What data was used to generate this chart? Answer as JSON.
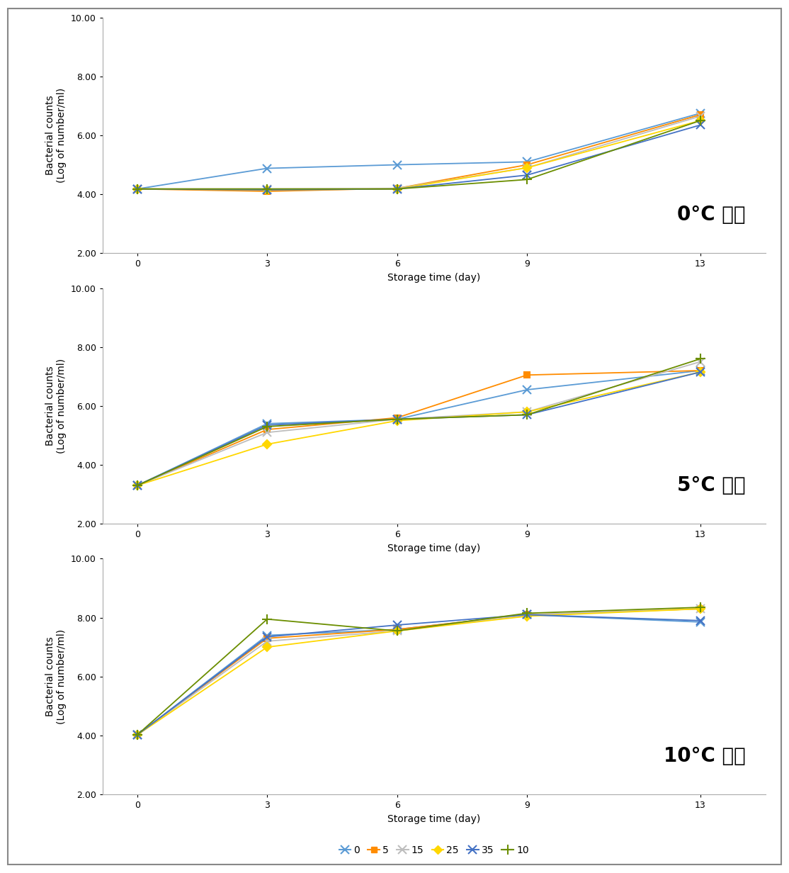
{
  "x": [
    0,
    3,
    6,
    9,
    13
  ],
  "series_labels": [
    "0",
    "5",
    "15",
    "25",
    "35",
    "10"
  ],
  "plot0_title": "0°C 저장",
  "plot1_title": "5°C 저장",
  "plot2_title": "10°C 저장",
  "ylabel_line1": "Bacterial counts",
  "ylabel_line2": "(Log of number/ml)",
  "xlabel": "Storage time (day)",
  "ylim": [
    2.0,
    10.0
  ],
  "yticks": [
    2.0,
    4.0,
    6.0,
    8.0,
    10.0
  ],
  "xticks": [
    0,
    3,
    6,
    9,
    13
  ],
  "plot0_data": [
    [
      4.18,
      4.88,
      5.0,
      5.1,
      6.75
    ],
    [
      4.18,
      4.1,
      4.2,
      5.0,
      6.7
    ],
    [
      4.18,
      4.18,
      4.2,
      4.9,
      6.65
    ],
    [
      4.18,
      4.15,
      4.18,
      4.9,
      6.5
    ],
    [
      4.18,
      4.15,
      4.18,
      4.65,
      6.35
    ],
    [
      4.18,
      4.18,
      4.18,
      4.5,
      6.5
    ]
  ],
  "plot1_data": [
    [
      3.3,
      5.4,
      5.55,
      6.55,
      7.2
    ],
    [
      3.3,
      5.2,
      5.6,
      7.05,
      7.2
    ],
    [
      3.3,
      5.1,
      5.55,
      5.8,
      7.5
    ],
    [
      3.3,
      4.7,
      5.5,
      5.8,
      7.15
    ],
    [
      3.3,
      5.35,
      5.55,
      5.7,
      7.15
    ],
    [
      3.3,
      5.3,
      5.55,
      5.7,
      7.6
    ]
  ],
  "plot2_data": [
    [
      4.02,
      7.4,
      7.6,
      8.1,
      7.85
    ],
    [
      4.02,
      7.3,
      7.6,
      8.1,
      8.3
    ],
    [
      4.02,
      7.2,
      7.55,
      8.1,
      8.3
    ],
    [
      4.02,
      7.0,
      7.55,
      8.05,
      8.3
    ],
    [
      4.02,
      7.35,
      7.75,
      8.1,
      7.9
    ],
    [
      4.02,
      7.95,
      7.55,
      8.15,
      8.35
    ]
  ],
  "series_colors": [
    "#5B9BD5",
    "#FF8C00",
    "#BEBEBE",
    "#FFD700",
    "#4472C4",
    "#6B8E00"
  ],
  "series_markers": [
    "x",
    "s",
    "x",
    "D",
    "x",
    "+"
  ],
  "series_markersizes": [
    8,
    6,
    8,
    6,
    8,
    10
  ],
  "background_color": "#FFFFFF",
  "title_fontsize": 20,
  "label_fontsize": 10,
  "tick_fontsize": 9,
  "legend_fontsize": 10,
  "border_color": "#AAAAAA"
}
